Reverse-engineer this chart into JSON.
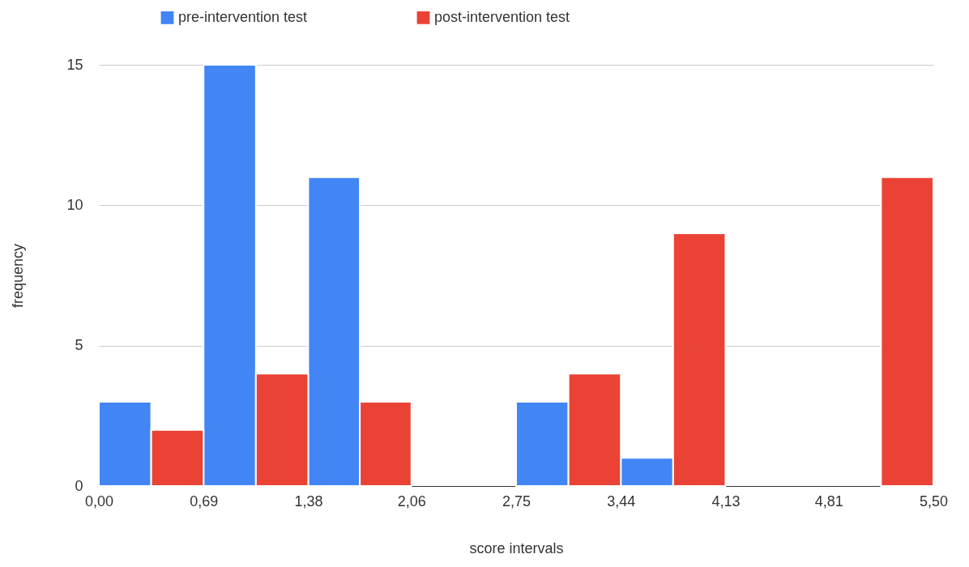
{
  "chart_data": {
    "type": "histogram",
    "xlabel": "score intervals",
    "ylabel": "frequency",
    "bins": [
      0,
      0.69,
      1.38,
      2.06,
      2.75,
      3.44,
      4.13,
      4.81,
      5.5
    ],
    "series": [
      {
        "name": "pre-intervention test",
        "color": "#4285f4",
        "values": [
          3,
          15,
          11,
          0,
          3,
          1,
          0,
          0
        ]
      },
      {
        "name": "post-intervention test",
        "color": "#ea4335",
        "values": [
          2,
          4,
          3,
          0,
          4,
          9,
          0,
          11
        ]
      }
    ],
    "xlim": [
      0,
      5.5
    ],
    "xticks": [
      {
        "value": 0,
        "label": "0,00"
      },
      {
        "value": 0.69,
        "label": "0,69"
      },
      {
        "value": 1.38,
        "label": "1,38"
      },
      {
        "value": 2.06,
        "label": "2,06"
      },
      {
        "value": 2.75,
        "label": "2,75"
      },
      {
        "value": 3.44,
        "label": "3,44"
      },
      {
        "value": 4.13,
        "label": "4,13"
      },
      {
        "value": 4.81,
        "label": "4,81"
      },
      {
        "value": 5.5,
        "label": "5,50"
      }
    ],
    "ylim": [
      0,
      15
    ],
    "yticks": [
      0,
      5,
      10,
      15
    ],
    "grid": "y",
    "legend": "top"
  }
}
